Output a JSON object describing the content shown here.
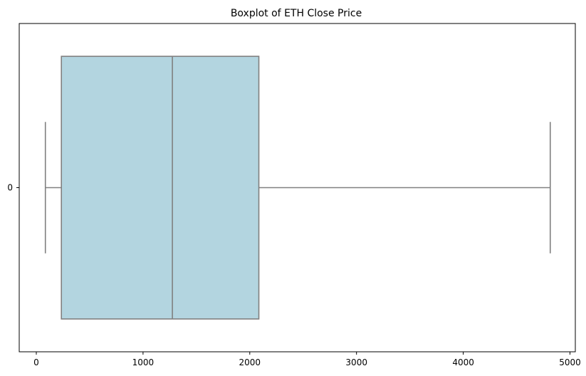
{
  "chart_data": {
    "type": "boxplot",
    "orientation": "horizontal",
    "title": "Boxplot of ETH Close Price",
    "xlabel": "",
    "ylabel": "",
    "categories": [
      "0"
    ],
    "boxes": [
      {
        "category": "0",
        "whisker_low": 85,
        "q1": 235,
        "median": 1275,
        "q3": 2085,
        "whisker_high": 4815
      }
    ],
    "xlim": [
      -160,
      5050
    ],
    "x_ticks": [
      0,
      1000,
      2000,
      3000,
      4000,
      5000
    ],
    "x_tick_labels": [
      "0",
      "1000",
      "2000",
      "3000",
      "4000",
      "5000"
    ],
    "grid": false,
    "colors": {
      "box_fill": "#b3d5e0",
      "lines": "#808080",
      "axes": "#000000"
    }
  }
}
